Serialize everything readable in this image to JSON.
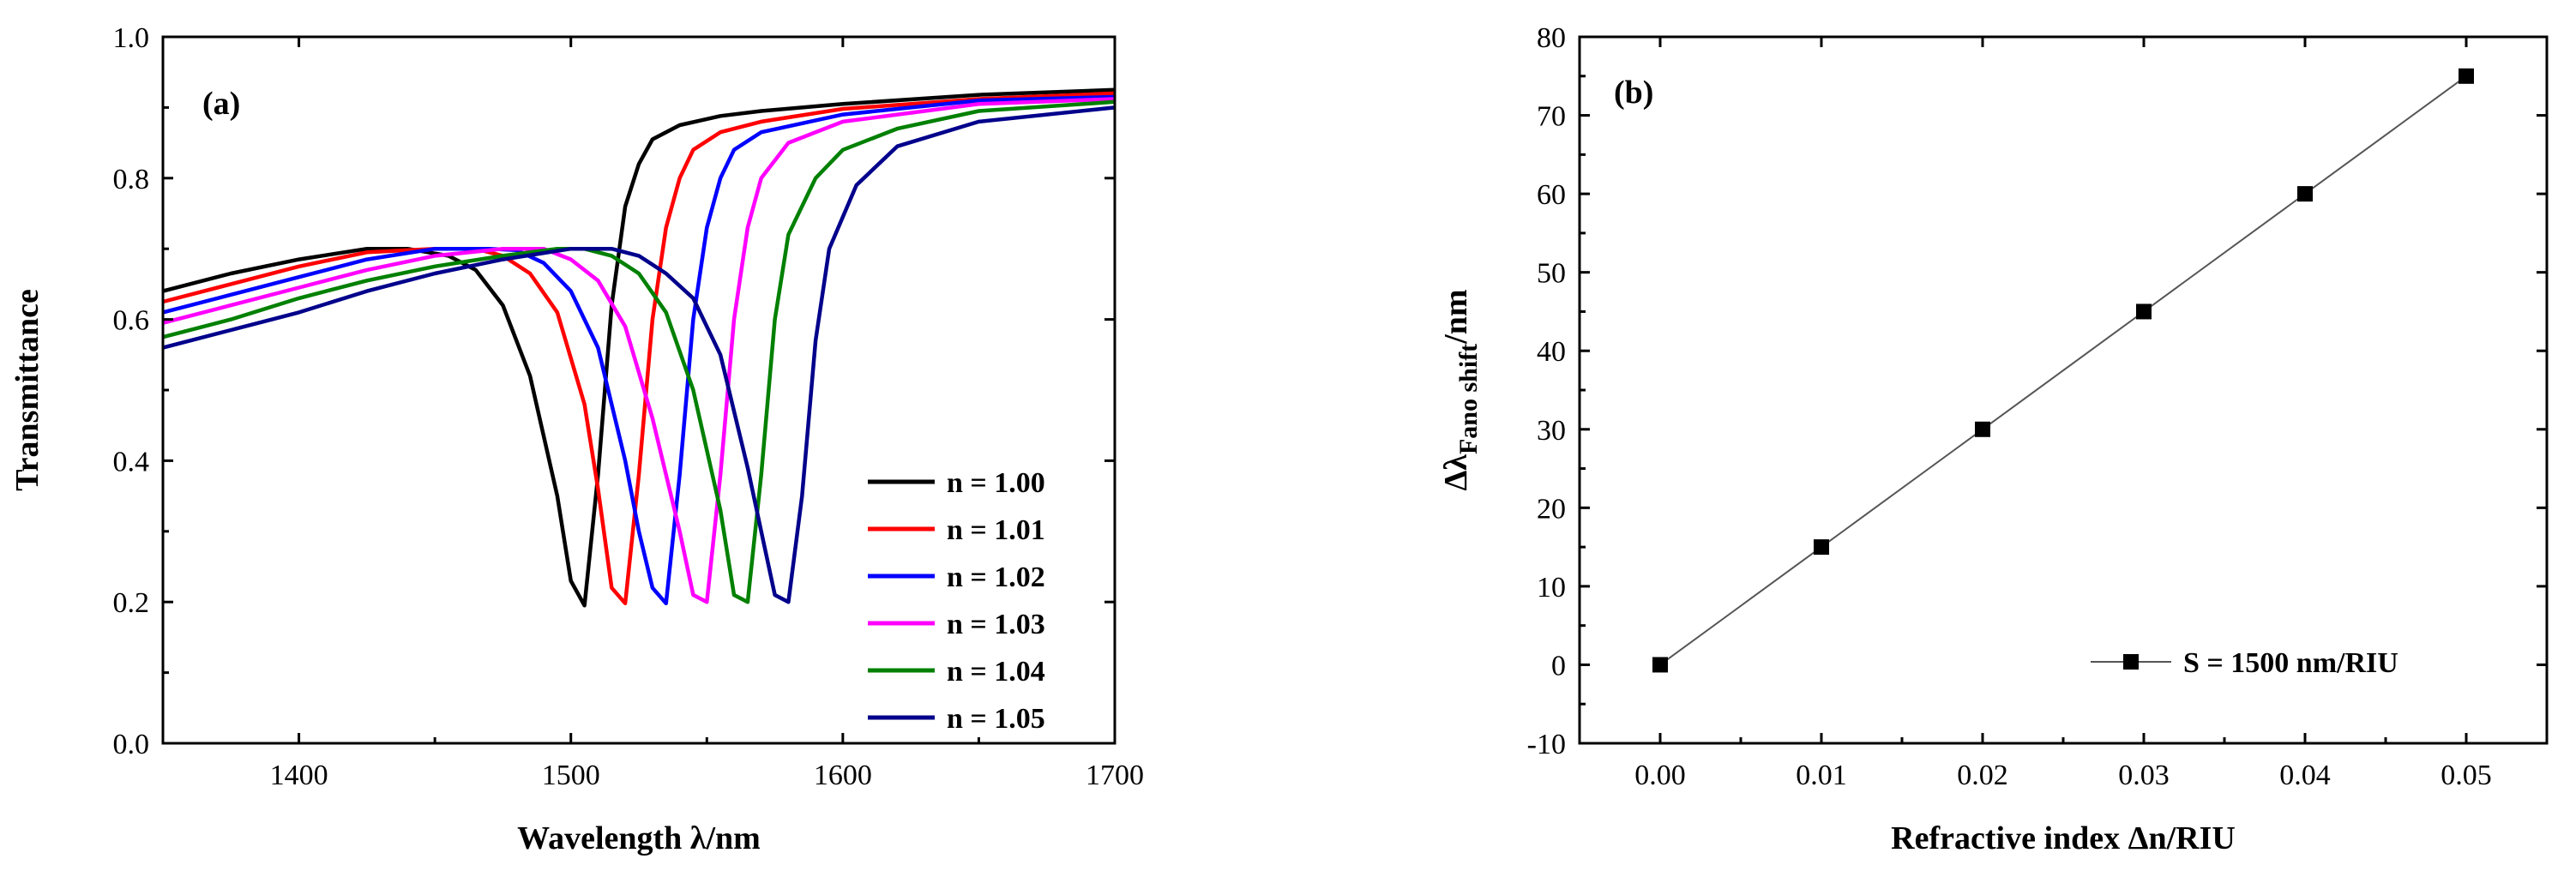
{
  "chart_data": [
    {
      "type": "line",
      "panel_label": "(a)",
      "xlabel": "Wavelength λ/nm",
      "ylabel": "Transmittance",
      "xlim": [
        1350,
        1700
      ],
      "ylim": [
        0.0,
        1.0
      ],
      "xticks": [
        1400,
        1500,
        1600,
        1700
      ],
      "yticks": [
        "0.0",
        "0.2",
        "0.4",
        "0.6",
        "0.8",
        "1.0"
      ],
      "legend_position": "bottom-right",
      "series": [
        {
          "name": "n = 1.00",
          "color": "#000000",
          "x": [
            1350,
            1375,
            1400,
            1425,
            1440,
            1455,
            1465,
            1475,
            1485,
            1495,
            1500,
            1505,
            1510,
            1515,
            1520,
            1525,
            1530,
            1540,
            1555,
            1570,
            1600,
            1650,
            1700
          ],
          "y": [
            0.64,
            0.665,
            0.685,
            0.7,
            0.7,
            0.69,
            0.67,
            0.62,
            0.52,
            0.35,
            0.23,
            0.195,
            0.38,
            0.62,
            0.76,
            0.82,
            0.855,
            0.875,
            0.888,
            0.895,
            0.905,
            0.918,
            0.925
          ]
        },
        {
          "name": "n = 1.01",
          "color": "#ff0000",
          "x": [
            1350,
            1375,
            1400,
            1425,
            1450,
            1465,
            1475,
            1485,
            1495,
            1505,
            1510,
            1515,
            1520,
            1525,
            1530,
            1535,
            1540,
            1545,
            1555,
            1570,
            1600,
            1650,
            1700
          ],
          "y": [
            0.625,
            0.65,
            0.675,
            0.695,
            0.7,
            0.7,
            0.69,
            0.665,
            0.61,
            0.48,
            0.36,
            0.22,
            0.198,
            0.38,
            0.6,
            0.73,
            0.8,
            0.84,
            0.865,
            0.88,
            0.898,
            0.912,
            0.92
          ]
        },
        {
          "name": "n = 1.02",
          "color": "#0000ff",
          "x": [
            1350,
            1375,
            1400,
            1425,
            1450,
            1470,
            1480,
            1490,
            1500,
            1510,
            1520,
            1525,
            1530,
            1535,
            1540,
            1545,
            1550,
            1555,
            1560,
            1570,
            1600,
            1650,
            1700
          ],
          "y": [
            0.61,
            0.635,
            0.66,
            0.685,
            0.7,
            0.7,
            0.698,
            0.68,
            0.64,
            0.56,
            0.4,
            0.3,
            0.22,
            0.198,
            0.38,
            0.6,
            0.73,
            0.8,
            0.84,
            0.865,
            0.89,
            0.91,
            0.915
          ]
        },
        {
          "name": "n = 1.03",
          "color": "#ff00ff",
          "x": [
            1350,
            1375,
            1400,
            1425,
            1450,
            1475,
            1490,
            1500,
            1510,
            1520,
            1530,
            1540,
            1545,
            1550,
            1555,
            1560,
            1565,
            1570,
            1580,
            1600,
            1650,
            1700
          ],
          "y": [
            0.595,
            0.62,
            0.645,
            0.67,
            0.69,
            0.7,
            0.7,
            0.685,
            0.655,
            0.59,
            0.46,
            0.3,
            0.21,
            0.2,
            0.38,
            0.6,
            0.73,
            0.8,
            0.85,
            0.88,
            0.905,
            0.912
          ]
        },
        {
          "name": "n = 1.04",
          "color": "#008000",
          "x": [
            1350,
            1375,
            1400,
            1425,
            1450,
            1475,
            1495,
            1505,
            1515,
            1525,
            1535,
            1545,
            1555,
            1560,
            1565,
            1570,
            1575,
            1580,
            1590,
            1600,
            1620,
            1650,
            1700
          ],
          "y": [
            0.575,
            0.6,
            0.63,
            0.655,
            0.675,
            0.69,
            0.7,
            0.7,
            0.69,
            0.665,
            0.61,
            0.5,
            0.33,
            0.21,
            0.2,
            0.38,
            0.6,
            0.72,
            0.8,
            0.84,
            0.87,
            0.895,
            0.908
          ]
        },
        {
          "name": "n = 1.05",
          "color": "#00008b",
          "x": [
            1350,
            1375,
            1400,
            1425,
            1450,
            1475,
            1500,
            1515,
            1525,
            1535,
            1545,
            1555,
            1565,
            1570,
            1575,
            1580,
            1585,
            1590,
            1595,
            1605,
            1620,
            1650,
            1700
          ],
          "y": [
            0.56,
            0.585,
            0.61,
            0.64,
            0.665,
            0.685,
            0.7,
            0.7,
            0.69,
            0.665,
            0.63,
            0.55,
            0.39,
            0.3,
            0.21,
            0.2,
            0.35,
            0.57,
            0.7,
            0.79,
            0.845,
            0.88,
            0.9
          ]
        }
      ]
    },
    {
      "type": "line",
      "panel_label": "(b)",
      "xlabel": "Refractive index Δn/RIU",
      "ylabel_main": "Δλ",
      "ylabel_sub": "Fano shift",
      "ylabel_suffix": "/nm",
      "xlim": [
        -0.005,
        0.055
      ],
      "ylim": [
        -10,
        80
      ],
      "xticks": [
        "0.00",
        "0.01",
        "0.02",
        "0.03",
        "0.04",
        "0.05"
      ],
      "yticks": [
        "-10",
        "0",
        "10",
        "20",
        "30",
        "40",
        "50",
        "60",
        "70",
        "80"
      ],
      "legend_position": "bottom-right",
      "series": [
        {
          "name": "S = 1500 nm/RIU",
          "color": "#000000",
          "marker": "square",
          "x": [
            0.0,
            0.01,
            0.02,
            0.03,
            0.04,
            0.05
          ],
          "y": [
            0,
            15,
            30,
            45,
            60,
            75
          ]
        }
      ]
    }
  ]
}
